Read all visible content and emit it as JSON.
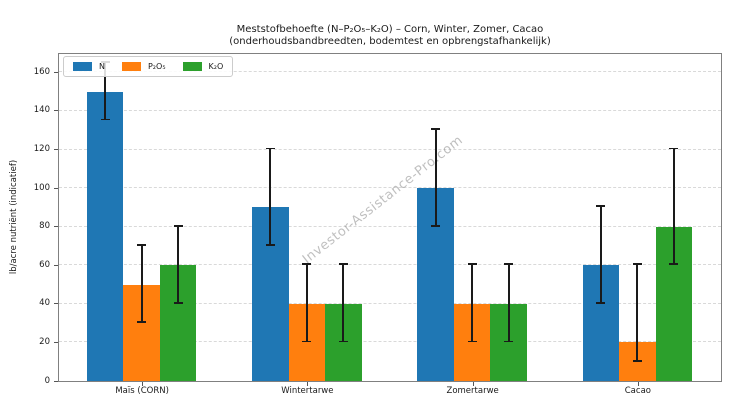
{
  "title": {
    "line1": "Meststofbehoefte (N–P₂O₅–K₂O) – Corn, Winter, Zomer, Cacao",
    "line2": "(onderhoudsbandbreedten, bodemtest en opbrengstafhankelijk)"
  },
  "watermark": {
    "text": "Investor-Assistance-Pro.com"
  },
  "chart_data": {
    "type": "bar",
    "title": "Meststofbehoefte (N–P₂O₅–K₂O) – Corn, Winter, Zomer, Cacao",
    "subtitle": "(onderhoudsbandbreedten, bodemtest en opbrengstafhankelijk)",
    "categories": [
      "Maïs (CORN)",
      "Wintertarwe",
      "Zomertarwe",
      "Cacao"
    ],
    "series": [
      {
        "name": "N",
        "color": "#1f77b4",
        "values": [
          150,
          90,
          100,
          60
        ],
        "err_low": [
          135,
          70,
          80,
          40
        ],
        "err_high": [
          165,
          120,
          130,
          90
        ]
      },
      {
        "name": "P₂O₅",
        "color": "#ff7f0e",
        "values": [
          50,
          40,
          40,
          20
        ],
        "err_low": [
          30,
          20,
          20,
          10
        ],
        "err_high": [
          70,
          60,
          60,
          60
        ]
      },
      {
        "name": "K₂O",
        "color": "#2ca02c",
        "values": [
          60,
          40,
          40,
          80
        ],
        "err_low": [
          40,
          20,
          20,
          60
        ],
        "err_high": [
          80,
          60,
          60,
          120
        ]
      }
    ],
    "xlabel": "",
    "ylabel": "lb/acre nutriënt (indicatief)",
    "yticks": [
      0,
      20,
      40,
      60,
      80,
      100,
      120,
      140,
      160
    ],
    "ylim": [
      0,
      169
    ],
    "grid": true,
    "grid_style": "dashed",
    "legend_position": "upper left",
    "error_bar_color": "#1a1a1a",
    "spine_color": "#808080",
    "grid_color": "#d9d9d9",
    "watermark_color": "#8c8c8c"
  }
}
